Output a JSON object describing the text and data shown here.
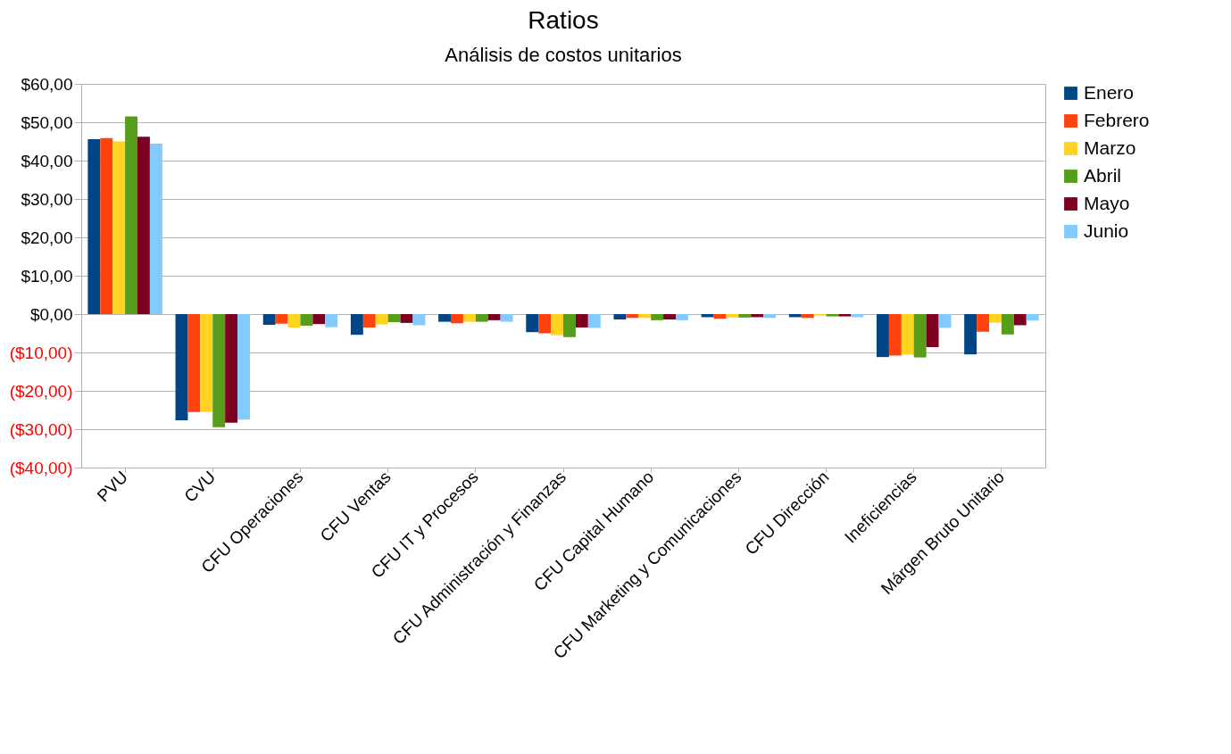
{
  "chart_data": {
    "type": "bar",
    "title": "Ratios",
    "subtitle": "Análisis de costos unitarios",
    "categories": [
      "PVU",
      "CVU",
      "CFU Operaciones",
      "CFU Ventas",
      "CFU IT y Procesos",
      "CFU Administración y Finanzas",
      "CFU Capital Humano",
      "CFU Marketing y Comunicaciones",
      "CFU Dirección",
      "Ineficiencias",
      "Márgen Bruto Unitario"
    ],
    "series": [
      {
        "name": "Enero",
        "color": "#004586",
        "values": [
          45.6,
          -27.7,
          -2.8,
          -5.4,
          -2.0,
          -4.7,
          -1.4,
          -0.8,
          -0.8,
          -11.2,
          -10.5
        ]
      },
      {
        "name": "Febrero",
        "color": "#ff420e",
        "values": [
          45.9,
          -25.5,
          -2.5,
          -3.5,
          -2.4,
          -5.0,
          -1.0,
          -1.2,
          -1.0,
          -10.8,
          -4.6
        ]
      },
      {
        "name": "Marzo",
        "color": "#ffd320",
        "values": [
          45.0,
          -25.5,
          -3.5,
          -2.7,
          -2.0,
          -5.5,
          -1.0,
          -0.9,
          -0.4,
          -10.6,
          -2.2
        ]
      },
      {
        "name": "Abril",
        "color": "#579d1c",
        "values": [
          51.5,
          -29.5,
          -3.0,
          -2.1,
          -2.0,
          -6.0,
          -1.6,
          -0.9,
          -0.6,
          -11.3,
          -5.3
        ]
      },
      {
        "name": "Mayo",
        "color": "#7e0021",
        "values": [
          46.2,
          -28.3,
          -2.6,
          -2.3,
          -1.6,
          -3.5,
          -1.4,
          -0.8,
          -0.6,
          -8.6,
          -2.9
        ]
      },
      {
        "name": "Junio",
        "color": "#83caff",
        "values": [
          44.4,
          -27.5,
          -3.4,
          -2.9,
          -2.0,
          -3.6,
          -1.6,
          -1.0,
          -0.8,
          -3.6,
          -1.7
        ]
      }
    ],
    "ylim": [
      -40,
      60
    ],
    "yticks": [
      {
        "value": -40,
        "label": "($40,00)"
      },
      {
        "value": -30,
        "label": "($30,00)"
      },
      {
        "value": -20,
        "label": "($20,00)"
      },
      {
        "value": -10,
        "label": "($10,00)"
      },
      {
        "value": 0,
        "label": "$0,00"
      },
      {
        "value": 10,
        "label": "$10,00"
      },
      {
        "value": 20,
        "label": "$20,00"
      },
      {
        "value": 30,
        "label": "$30,00"
      },
      {
        "value": 40,
        "label": "$40,00"
      },
      {
        "value": 50,
        "label": "$50,00"
      },
      {
        "value": 60,
        "label": "$60,00"
      }
    ],
    "grid": "y",
    "legend": "right"
  }
}
